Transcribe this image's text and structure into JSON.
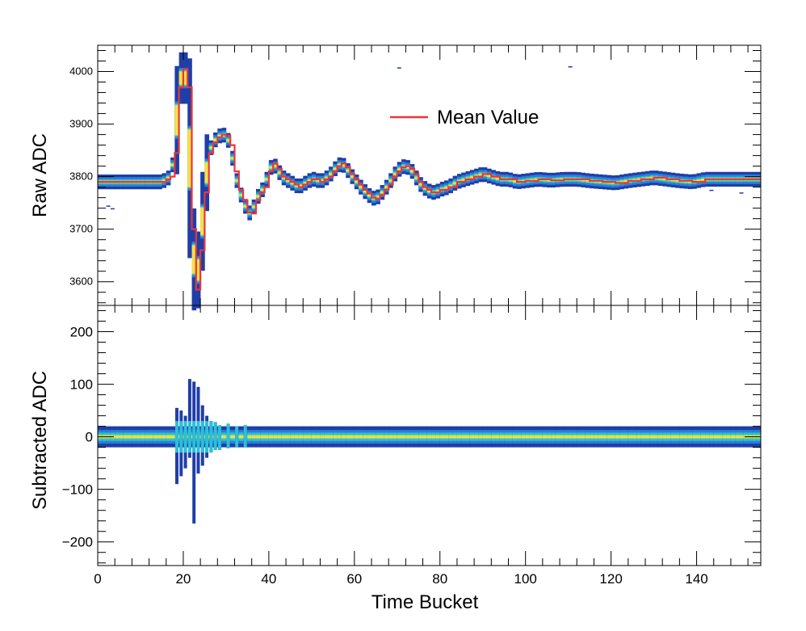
{
  "chart_data": [
    {
      "type": "heatmap",
      "panel": "top",
      "title": "",
      "xlabel": "",
      "ylabel": "Raw ADC",
      "xlim": [
        0,
        155
      ],
      "ylim": [
        3555,
        4050
      ],
      "yticks": [
        3600,
        3700,
        3800,
        3900,
        4000
      ],
      "ytick_labels": [
        "3600",
        "3700",
        "3800",
        "3900",
        "4000"
      ],
      "legend": {
        "position": "top-center",
        "entries": [
          {
            "label": "Mean Value",
            "color": "#e8363b"
          }
        ]
      },
      "series": [
        {
          "name": "Mean Value",
          "kind": "step-line",
          "color": "#e8363b",
          "x": [
            0,
            1,
            2,
            3,
            4,
            5,
            6,
            7,
            8,
            9,
            10,
            11,
            12,
            13,
            14,
            15,
            16,
            17,
            18,
            19,
            20,
            21,
            22,
            23,
            24,
            25,
            26,
            27,
            28,
            29,
            30,
            31,
            32,
            33,
            34,
            35,
            36,
            37,
            38,
            39,
            40,
            41,
            42,
            43,
            44,
            45,
            46,
            47,
            48,
            49,
            50,
            51,
            52,
            53,
            54,
            55,
            56,
            57,
            58,
            59,
            60,
            61,
            62,
            63,
            64,
            65,
            66,
            67,
            68,
            69,
            70,
            71,
            72,
            73,
            74,
            75,
            76,
            77,
            78,
            79,
            80,
            82,
            84,
            86,
            88,
            90,
            92,
            94,
            96,
            98,
            100,
            103,
            106,
            109,
            112,
            115,
            118,
            121,
            124,
            127,
            130,
            133,
            136,
            139,
            142,
            145,
            148,
            151,
            154
          ],
          "y": [
            3790,
            3790,
            3790,
            3790,
            3790,
            3790,
            3790,
            3790,
            3790,
            3790,
            3790,
            3790,
            3790,
            3790,
            3790,
            3790,
            3795,
            3800,
            3845,
            3970,
            4005,
            3970,
            3700,
            3585,
            3660,
            3770,
            3845,
            3865,
            3875,
            3880,
            3878,
            3860,
            3810,
            3775,
            3755,
            3732,
            3730,
            3755,
            3770,
            3780,
            3810,
            3825,
            3815,
            3800,
            3795,
            3790,
            3785,
            3780,
            3785,
            3790,
            3795,
            3795,
            3790,
            3795,
            3800,
            3810,
            3820,
            3825,
            3818,
            3805,
            3795,
            3785,
            3775,
            3768,
            3760,
            3758,
            3765,
            3775,
            3785,
            3800,
            3810,
            3818,
            3820,
            3815,
            3805,
            3790,
            3780,
            3775,
            3770,
            3770,
            3775,
            3780,
            3790,
            3795,
            3800,
            3805,
            3800,
            3795,
            3795,
            3790,
            3792,
            3795,
            3793,
            3795,
            3795,
            3792,
            3790,
            3788,
            3792,
            3795,
            3798,
            3795,
            3792,
            3790,
            3795,
            3795,
            3795,
            3795,
            3795
          ]
        }
      ]
    },
    {
      "type": "heatmap",
      "panel": "bottom",
      "title": "",
      "xlabel": "Time Bucket",
      "ylabel": "Subtracted ADC",
      "xlim": [
        0,
        155
      ],
      "ylim": [
        -245,
        250
      ],
      "xticks": [
        0,
        20,
        40,
        60,
        80,
        100,
        120,
        140
      ],
      "xtick_labels": [
        "0",
        "20",
        "40",
        "60",
        "80",
        "100",
        "120",
        "140"
      ],
      "yticks": [
        -200,
        -100,
        0,
        100,
        200
      ],
      "ytick_labels": [
        "−200",
        "−100",
        "0",
        "100",
        "200"
      ],
      "spike_columns": [
        {
          "x": 18.5,
          "ymin": -90,
          "ymax": 55
        },
        {
          "x": 19.5,
          "ymin": -75,
          "ymax": 50
        },
        {
          "x": 20.5,
          "ymin": -60,
          "ymax": 40
        },
        {
          "x": 21.5,
          "ymin": -40,
          "ymax": 110
        },
        {
          "x": 22.5,
          "ymin": -165,
          "ymax": 105
        },
        {
          "x": 23.5,
          "ymin": -70,
          "ymax": 95
        },
        {
          "x": 24.5,
          "ymin": -55,
          "ymax": 60
        },
        {
          "x": 25.5,
          "ymin": -40,
          "ymax": 40
        },
        {
          "x": 26.5,
          "ymin": -30,
          "ymax": 30
        },
        {
          "x": 27.5,
          "ymin": -25,
          "ymax": 28
        },
        {
          "x": 28.5,
          "ymin": -25,
          "ymax": 22
        },
        {
          "x": 30.5,
          "ymin": -22,
          "ymax": 25
        },
        {
          "x": 32.5,
          "ymin": -20,
          "ymax": 20
        },
        {
          "x": 34.5,
          "ymin": -20,
          "ymax": 22
        }
      ]
    }
  ]
}
